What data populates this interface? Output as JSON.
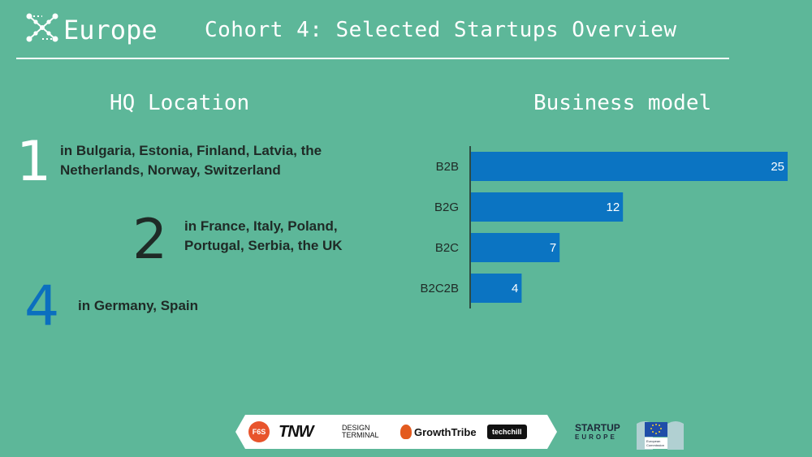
{
  "header": {
    "brand_word": "Europe",
    "title": "Cohort 4: Selected Startups Overview"
  },
  "hq": {
    "title": "HQ Location",
    "entries": [
      {
        "count": "1",
        "text_line1": "in Bulgaria, Estonia, Finland, Latvia, the",
        "text_line2": "Netherlands, Norway, Switzerland",
        "color": "#ffffff"
      },
      {
        "count": "2",
        "text_line1": "in France, Italy, Poland,",
        "text_line2": "Portugal, Serbia, the UK",
        "color": "#1f2a26"
      },
      {
        "count": "4",
        "text_line1": "in Germany, Spain",
        "text_line2": "",
        "color": "#0b6fbf"
      }
    ]
  },
  "business": {
    "title": "Business model"
  },
  "chart_data": {
    "type": "bar",
    "orientation": "horizontal",
    "title": "Business model",
    "categories": [
      "B2B",
      "B2G",
      "B2C",
      "B2C2B"
    ],
    "values": [
      25,
      12,
      7,
      4
    ],
    "xlim": [
      0,
      25
    ],
    "bar_color": "#0b74c2",
    "data_labels": true,
    "grid": false
  },
  "partners": {
    "items": [
      "F6S",
      "TNW",
      "DESIGN TERMINAL",
      "GrowthTribe",
      "techchill"
    ],
    "startup_europe_line1": "STARTUP",
    "startup_europe_line2": "EUROPE",
    "eu_text_line1": "European",
    "eu_text_line2": "Commission"
  },
  "colors": {
    "background": "#5db799",
    "accent_blue": "#0b74c2"
  }
}
